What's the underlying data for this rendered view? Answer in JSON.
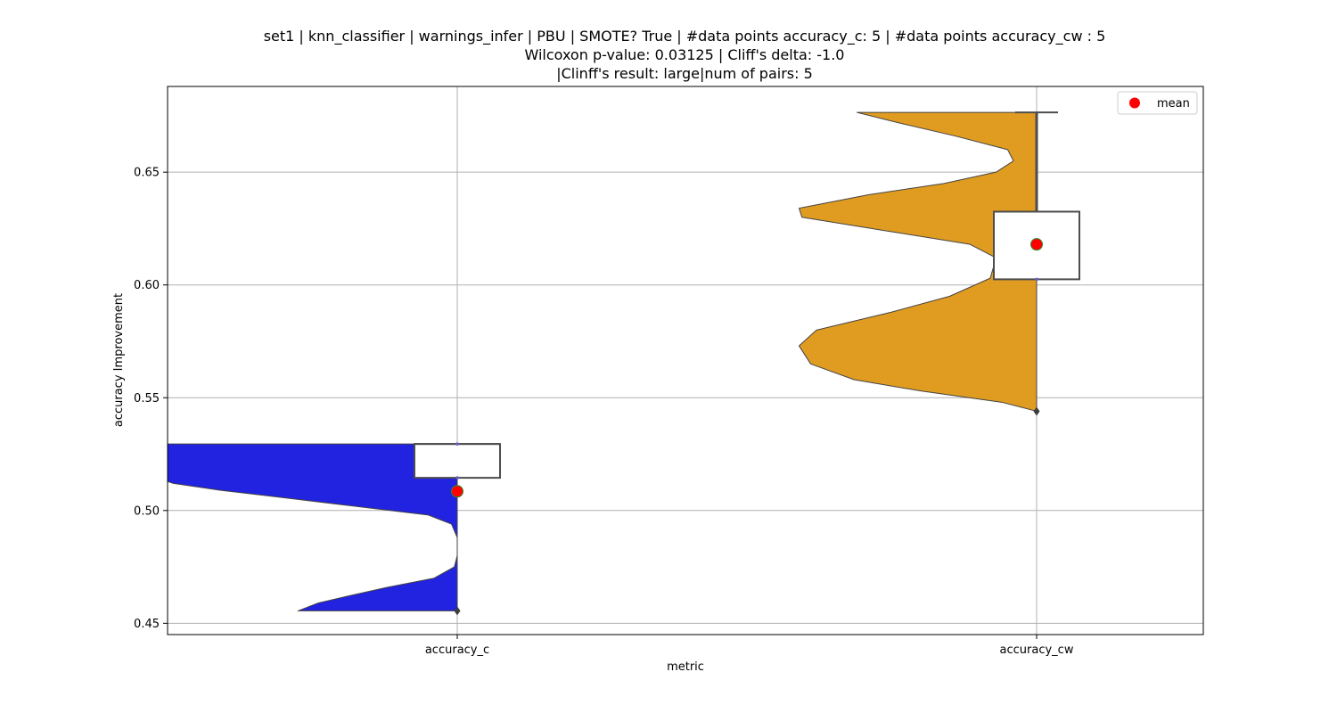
{
  "chart_data": {
    "type": "violin",
    "title_lines": [
      "set1 | knn_classifier | warnings_infer | PBU | SMOTE? True | #data points accuracy_c: 5 | #data points accuracy_cw : 5",
      "Wilcoxon p-value: 0.03125 | Cliff's delta: -1.0",
      "|Clinff's result: large|num of pairs: 5"
    ],
    "xlabel": "metric",
    "ylabel": "accuracy Improvement",
    "categories": [
      "accuracy_c",
      "accuracy_cw"
    ],
    "ylim": [
      0.445,
      0.688
    ],
    "yticks": [
      0.45,
      0.5,
      0.55,
      0.6,
      0.65
    ],
    "ytick_labels": [
      "0.45",
      "0.50",
      "0.55",
      "0.60",
      "0.65"
    ],
    "grid": true,
    "legend": {
      "placement": "top-right",
      "entries": [
        {
          "label": "mean",
          "color": "#ff0000",
          "marker": "circle"
        }
      ]
    },
    "series": [
      {
        "category": "accuracy_c",
        "violin_color": "#2222e1",
        "violin_side": "left",
        "violin_range": [
          0.4555,
          0.5295
        ],
        "density_profile": [
          [
            0.4555,
            0.55
          ],
          [
            0.459,
            0.48
          ],
          [
            0.462,
            0.38
          ],
          [
            0.466,
            0.24
          ],
          [
            0.47,
            0.08
          ],
          [
            0.475,
            0.01
          ],
          [
            0.48,
            0.0
          ],
          [
            0.488,
            0.0
          ],
          [
            0.494,
            0.02
          ],
          [
            0.498,
            0.1
          ],
          [
            0.502,
            0.36
          ],
          [
            0.506,
            0.62
          ],
          [
            0.509,
            0.82
          ],
          [
            0.512,
            0.98
          ],
          [
            0.515,
            1.05
          ],
          [
            0.52,
            1.1
          ],
          [
            0.525,
            1.12
          ],
          [
            0.5295,
            1.12
          ]
        ],
        "box": {
          "whisker_low": 0.5145,
          "q1": 0.5145,
          "median": 0.5295,
          "q3": 0.5295,
          "whisker_high": 0.5295
        },
        "mean": 0.5085,
        "outliers": [
          0.4555
        ]
      },
      {
        "category": "accuracy_cw",
        "violin_color": "#e09c21",
        "violin_side": "left",
        "violin_range": [
          0.544,
          0.6765
        ],
        "density_profile": [
          [
            0.544,
            0.0
          ],
          [
            0.548,
            0.12
          ],
          [
            0.553,
            0.4
          ],
          [
            0.558,
            0.63
          ],
          [
            0.565,
            0.78
          ],
          [
            0.573,
            0.82
          ],
          [
            0.58,
            0.76
          ],
          [
            0.588,
            0.5
          ],
          [
            0.595,
            0.3
          ],
          [
            0.603,
            0.16
          ],
          [
            0.612,
            0.14
          ],
          [
            0.618,
            0.23
          ],
          [
            0.624,
            0.52
          ],
          [
            0.63,
            0.81
          ],
          [
            0.634,
            0.82
          ],
          [
            0.64,
            0.58
          ],
          [
            0.645,
            0.32
          ],
          [
            0.65,
            0.14
          ],
          [
            0.655,
            0.08
          ],
          [
            0.66,
            0.1
          ],
          [
            0.666,
            0.28
          ],
          [
            0.672,
            0.48
          ],
          [
            0.6765,
            0.62
          ]
        ],
        "box": {
          "whisker_low": 0.6025,
          "q1": 0.6025,
          "median": 0.6325,
          "q3": 0.6325,
          "whisker_high": 0.6765
        },
        "mean": 0.618,
        "outliers": [
          0.544
        ]
      }
    ],
    "colors": {
      "mean_fill": "#ff0000",
      "mean_edge": "#2e8b2e",
      "box_edge": "#4d4d4d",
      "grid": "#b0b0b0",
      "violin_edge": "#444444"
    }
  }
}
